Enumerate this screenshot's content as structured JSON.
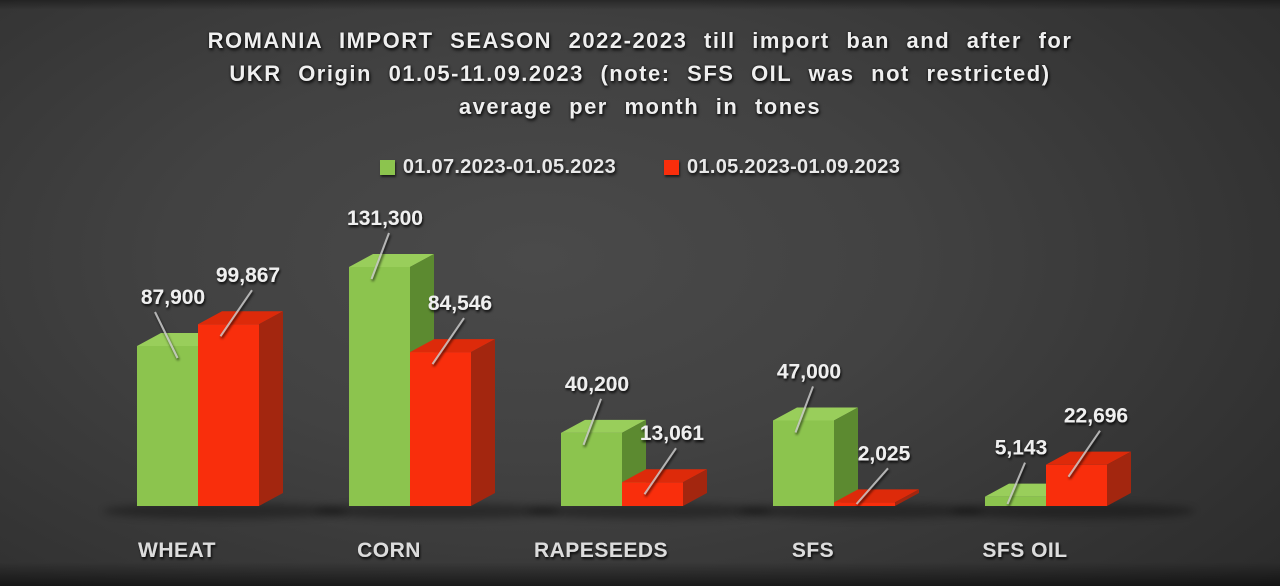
{
  "title": {
    "line1": "ROMANIA IMPORT SEASON 2022-2023 till import ban and after for",
    "line2": "UKR Origin 01.05-11.09.2023 (note: SFS OIL was not restricted)",
    "line3": "average per month in tones"
  },
  "legend": [
    {
      "label": "01.07.2023-01.05.2023",
      "color": "#8CC44E"
    },
    {
      "label": "01.05.2023-01.09.2023",
      "color": "#F92E0C"
    }
  ],
  "chart_data": {
    "type": "bar",
    "style": "3d-clustered-column",
    "title": "ROMANIA IMPORT SEASON 2022-2023 till import ban and after for UKR Origin 01.05-11.09.2023 (note: SFS OIL was not restricted) average per month in tones",
    "categories": [
      "WHEAT",
      "CORN",
      "RAPESEEDS",
      "SFS",
      "SFS OIL"
    ],
    "series": [
      {
        "name": "01.07.2023-01.05.2023",
        "color": "#8CC44E",
        "values": [
          87900,
          131300,
          40200,
          47000,
          5143
        ],
        "value_labels": [
          "87,900",
          "131,300",
          "40,200",
          "47,000",
          "5,143"
        ]
      },
      {
        "name": "01.05.2023-01.09.2023",
        "color": "#F92E0C",
        "values": [
          99867,
          84546,
          13061,
          2025,
          22696
        ],
        "value_labels": [
          "99,867",
          "84,546",
          "13,061",
          "2,025",
          "22,696"
        ]
      }
    ],
    "value_axis": {
      "visible": false,
      "implied_max": 131300
    },
    "gridlines": false,
    "legend_position": "top",
    "data_labels": "above bars with leader lines"
  },
  "colors": {
    "green_front": "#8CC44E",
    "green_top": "#99CE5B",
    "green_side": "#5C8A30",
    "red_front": "#F92E0C",
    "red_top": "#DD2A0A",
    "red_side": "#A3260F",
    "value_label_text": "#EFEFEF",
    "category_label_text": "#DCDCDC",
    "leader_line": "#C9C9C9",
    "background_center": "#4A4A4A",
    "background_edge": "#242424"
  }
}
